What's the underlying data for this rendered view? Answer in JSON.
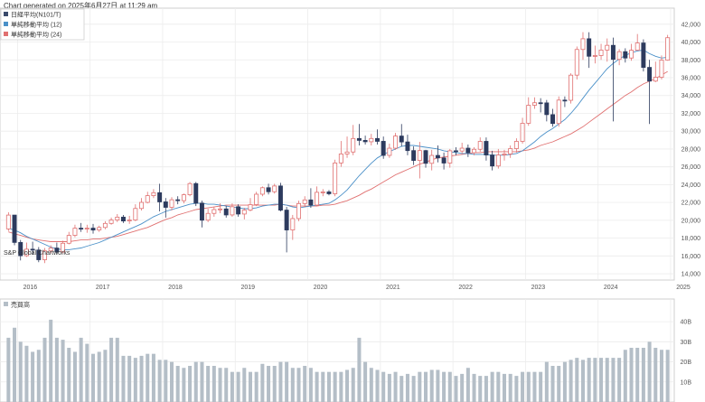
{
  "header": {
    "generated": "Chart generated on 2025年6月27日 at 11:29 am"
  },
  "legend": {
    "items": [
      {
        "label": "日経平均(N101/T)",
        "color": "#3a4a6b"
      },
      {
        "label": "単純移動平均 (12)",
        "color": "#4a90c8"
      },
      {
        "label": "単純移動平均 (24)",
        "color": "#e07070"
      }
    ]
  },
  "watermark": "S&P Global Chartworks",
  "chart_data": [
    {
      "type": "candlestick",
      "x_ticks": [
        "2016",
        "2017",
        "2018",
        "2019",
        "2020",
        "2021",
        "2022",
        "2023",
        "2024",
        "2025"
      ],
      "y_ticks": [
        "14,000",
        "16,000",
        "18,000",
        "20,000",
        "22,000",
        "24,000",
        "26,000",
        "28,000",
        "30,000",
        "32,000",
        "34,000",
        "36,000",
        "38,000",
        "40,000",
        "42,000"
      ],
      "ylim": [
        13500,
        43500
      ],
      "up_color": "#e07070",
      "down_color": "#2d3b5e",
      "series_name": "日経平均(N101/T)",
      "closes": [
        20585,
        17518,
        16027,
        16758,
        16666,
        15576,
        16570,
        16887,
        16450,
        17425,
        18309,
        19114,
        19041,
        19119,
        18909,
        19197,
        19651,
        20033,
        20356,
        19925,
        20033,
        21328,
        22012,
        22765,
        23098,
        22068,
        21454,
        22305,
        22202,
        22865,
        24120,
        21920,
        20015,
        20773,
        21206,
        21276,
        20601,
        21522,
        20704,
        21143,
        21756,
        22927,
        23656,
        23205,
        23851,
        21143,
        18917,
        20193,
        21878,
        22288,
        21710,
        23140,
        23185,
        22977,
        26433,
        27444,
        27663,
        29178,
        28966,
        28812,
        29178,
        28860,
        27283,
        28089,
        29452,
        28791,
        27822,
        26717,
        27821,
        26393,
        27279,
        27000,
        26423,
        27801,
        27770,
        28092,
        27587,
        27968,
        28856,
        27327,
        26094,
        27327,
        27445,
        28041,
        28856,
        30887,
        32908,
        33189,
        33172,
        31857,
        30858,
        33486,
        33464,
        36286,
        39166,
        40369,
        38405,
        38487,
        39101,
        39631,
        38054,
        38919,
        38208,
        39081,
        39894,
        37155,
        35617,
        36045,
        37965,
        40487
      ],
      "opens": [
        19034,
        20585,
        17518,
        16027,
        16758,
        16666,
        15576,
        16570,
        16887,
        16450,
        17425,
        18309,
        19114,
        19041,
        19119,
        18909,
        19197,
        19651,
        20033,
        20356,
        19925,
        20033,
        21328,
        22012,
        22765,
        23098,
        22068,
        21454,
        22305,
        22202,
        22865,
        24120,
        21920,
        20015,
        20773,
        21206,
        21276,
        20601,
        21522,
        20704,
        21143,
        21756,
        22927,
        23656,
        23205,
        23851,
        21143,
        18917,
        20193,
        21878,
        22288,
        21710,
        23140,
        23185,
        22977,
        26433,
        27444,
        27663,
        29178,
        28966,
        28812,
        29178,
        28860,
        27283,
        28089,
        29452,
        28791,
        27822,
        26717,
        27821,
        26393,
        27279,
        27000,
        26423,
        27801,
        27770,
        28092,
        27587,
        27968,
        28856,
        27327,
        26094,
        27327,
        27445,
        28041,
        28856,
        30887,
        32908,
        33189,
        33172,
        31857,
        30858,
        33486,
        33464,
        36286,
        39166,
        40369,
        38405,
        38487,
        39101,
        39631,
        38054,
        38919,
        38208,
        39081,
        39894,
        37155,
        35617,
        36045,
        37965
      ],
      "highs": [
        20900,
        20600,
        17800,
        17500,
        17600,
        17000,
        16900,
        17200,
        17500,
        17700,
        18700,
        19500,
        19700,
        19500,
        19600,
        19400,
        19900,
        20300,
        20700,
        20600,
        20500,
        21800,
        22500,
        23200,
        23500,
        24100,
        22500,
        22600,
        22700,
        23000,
        24300,
        24300,
        22200,
        21300,
        21500,
        21900,
        21600,
        21900,
        21800,
        21400,
        22500,
        23200,
        23800,
        24100,
        24100,
        24200,
        21500,
        20600,
        22200,
        22700,
        23600,
        23800,
        23500,
        23400,
        26800,
        28900,
        29400,
        30700,
        30800,
        29500,
        29700,
        30200,
        29400,
        28600,
        29800,
        30800,
        29600,
        28300,
        28800,
        27900,
        27900,
        28400,
        27600,
        28000,
        28200,
        28700,
        28500,
        28200,
        29300,
        29300,
        27800,
        28000,
        27900,
        28400,
        29200,
        31500,
        33800,
        33800,
        33700,
        33500,
        32500,
        33900,
        33900,
        36500,
        39500,
        41100,
        41100,
        39600,
        39800,
        40400,
        40500,
        39200,
        39300,
        39800,
        40900,
        40300,
        38000,
        37800,
        38500,
        40800
      ],
      "lows": [
        18800,
        17200,
        15500,
        15900,
        16200,
        15300,
        15200,
        16300,
        16300,
        16300,
        17300,
        18100,
        18700,
        18600,
        18500,
        18700,
        19000,
        19500,
        19800,
        19700,
        19600,
        19900,
        21100,
        21900,
        22500,
        21000,
        20300,
        21100,
        21800,
        21900,
        22700,
        21600,
        19200,
        19800,
        20400,
        20800,
        20300,
        20400,
        20400,
        20100,
        21000,
        21600,
        22700,
        22900,
        23000,
        21000,
        16400,
        17800,
        19900,
        21500,
        21400,
        21600,
        22700,
        22800,
        22700,
        26000,
        27000,
        27300,
        28400,
        28500,
        28400,
        28500,
        26900,
        27000,
        27900,
        28300,
        27300,
        26200,
        24700,
        25900,
        25600,
        26500,
        25700,
        25900,
        27300,
        27500,
        27100,
        27300,
        27700,
        26700,
        25600,
        25800,
        26700,
        27000,
        27600,
        28600,
        30600,
        32500,
        32100,
        31100,
        30500,
        30500,
        32700,
        33100,
        35800,
        38000,
        37100,
        37600,
        38000,
        37800,
        31100,
        37400,
        37700,
        37900,
        39300,
        36700,
        30800,
        35500,
        35800,
        37900
      ],
      "sma12": [
        19100,
        18900,
        18600,
        18200,
        17900,
        17600,
        17300,
        17000,
        16800,
        16700,
        16700,
        16800,
        16900,
        17100,
        17300,
        17500,
        17800,
        18100,
        18400,
        18700,
        19000,
        19300,
        19600,
        20000,
        20400,
        20700,
        21000,
        21200,
        21400,
        21600,
        21800,
        21900,
        21900,
        21800,
        21800,
        21700,
        21600,
        21500,
        21400,
        21300,
        21300,
        21400,
        21600,
        21700,
        21800,
        21800,
        21700,
        21500,
        21400,
        21500,
        21600,
        21700,
        21800,
        21900,
        22300,
        22800,
        23400,
        24200,
        25000,
        25700,
        26400,
        27000,
        27400,
        27700,
        28000,
        28300,
        28400,
        28400,
        28300,
        28200,
        28100,
        28000,
        27800,
        27700,
        27600,
        27500,
        27500,
        27400,
        27400,
        27400,
        27300,
        27300,
        27300,
        27400,
        27500,
        27800,
        28300,
        28800,
        29400,
        29900,
        30300,
        30800,
        31300,
        32000,
        32800,
        33700,
        34600,
        35400,
        36200,
        37000,
        37600,
        38100,
        38500,
        38800,
        39000,
        39100,
        38700,
        38400,
        38200,
        38300
      ],
      "sma24": [
        18700,
        18500,
        18300,
        18100,
        17900,
        17800,
        17700,
        17600,
        17600,
        17600,
        17600,
        17700,
        17800,
        17800,
        17900,
        17900,
        18000,
        18100,
        18200,
        18400,
        18600,
        18800,
        19000,
        19200,
        19500,
        19800,
        20100,
        20300,
        20600,
        20800,
        21000,
        21200,
        21300,
        21400,
        21500,
        21600,
        21700,
        21700,
        21700,
        21700,
        21700,
        21700,
        21700,
        21700,
        21700,
        21800,
        21700,
        21600,
        21600,
        21600,
        21600,
        21600,
        21700,
        21700,
        21800,
        22000,
        22200,
        22500,
        22800,
        23200,
        23500,
        23900,
        24300,
        24700,
        25100,
        25400,
        25700,
        26000,
        26300,
        26500,
        26800,
        27000,
        27100,
        27200,
        27300,
        27400,
        27500,
        27600,
        27600,
        27700,
        27700,
        27700,
        27700,
        27700,
        27700,
        27800,
        27900,
        28100,
        28400,
        28600,
        28800,
        29100,
        29400,
        29700,
        30100,
        30500,
        31000,
        31500,
        32000,
        32500,
        33000,
        33500,
        34000,
        34400,
        34900,
        35300,
        35600,
        35900,
        36300,
        36700
      ]
    },
    {
      "type": "bar",
      "title": "売買高",
      "series_name": "売買高",
      "color": "#b4bec7",
      "y_ticks": [
        "10B",
        "20B",
        "30B",
        "40B"
      ],
      "ylim": [
        0,
        45
      ],
      "values": [
        32,
        37,
        30,
        28,
        25,
        26,
        32,
        41,
        32,
        31,
        27,
        25,
        32,
        29,
        24,
        25,
        26,
        32,
        32,
        23,
        23,
        22,
        23,
        24,
        24,
        21,
        21,
        20,
        18,
        17,
        18,
        20,
        20,
        18,
        18,
        17,
        17,
        15,
        15,
        17,
        15,
        15,
        19,
        18,
        18,
        20,
        20,
        17,
        17,
        18,
        17,
        15,
        15,
        15,
        15,
        15,
        16,
        17,
        32,
        20,
        17,
        16,
        15,
        14,
        15,
        13,
        14,
        13,
        15,
        15,
        16,
        16,
        15,
        15,
        13,
        14,
        17,
        14,
        13,
        13,
        15,
        15,
        14,
        14,
        13,
        15,
        15,
        15,
        15,
        20,
        18,
        18,
        20,
        21,
        22,
        21,
        22,
        22,
        22,
        22,
        22,
        22,
        26,
        27,
        27,
        27,
        30,
        27,
        26,
        26
      ]
    }
  ]
}
